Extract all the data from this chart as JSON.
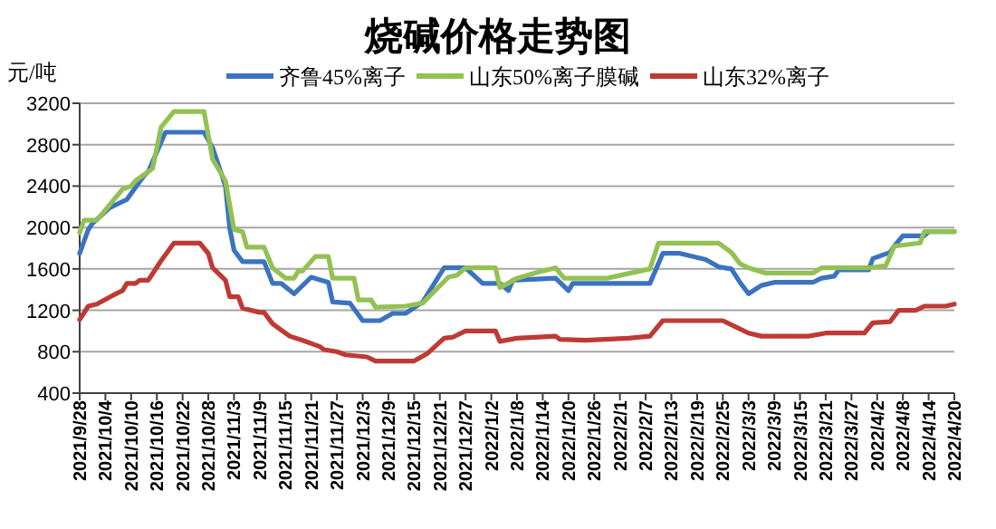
{
  "chart_data": {
    "type": "line",
    "title": "烧碱价格走势图",
    "ylabel": "元/吨",
    "xlim": [
      "2021-09-28",
      "2022-04-20"
    ],
    "ylim": [
      400,
      3200
    ],
    "yticks": [
      400,
      800,
      1200,
      1600,
      2000,
      2400,
      2800,
      3200
    ],
    "xticks": [
      {
        "value": "2021-09-28",
        "label": "2021/9/28"
      },
      {
        "value": "2021-10-04",
        "label": "2021/10/4"
      },
      {
        "value": "2021-10-10",
        "label": "2021/10/10"
      },
      {
        "value": "2021-10-16",
        "label": "2021/10/16"
      },
      {
        "value": "2021-10-22",
        "label": "2021/10/22"
      },
      {
        "value": "2021-10-28",
        "label": "2021/10/28"
      },
      {
        "value": "2021-11-03",
        "label": "2021/11/3"
      },
      {
        "value": "2021-11-09",
        "label": "2021/11/9"
      },
      {
        "value": "2021-11-15",
        "label": "2021/11/15"
      },
      {
        "value": "2021-11-21",
        "label": "2021/11/21"
      },
      {
        "value": "2021-11-27",
        "label": "2021/11/27"
      },
      {
        "value": "2021-12-03",
        "label": "2021/12/3"
      },
      {
        "value": "2021-12-09",
        "label": "2021/12/9"
      },
      {
        "value": "2021-12-15",
        "label": "2021/12/15"
      },
      {
        "value": "2021-12-21",
        "label": "2021/12/21"
      },
      {
        "value": "2021-12-27",
        "label": "2021/12/27"
      },
      {
        "value": "2022-01-02",
        "label": "2022/1/2"
      },
      {
        "value": "2022-01-08",
        "label": "2022/1/8"
      },
      {
        "value": "2022-01-14",
        "label": "2022/1/14"
      },
      {
        "value": "2022-01-20",
        "label": "2022/1/20"
      },
      {
        "value": "2022-01-26",
        "label": "2022/1/26"
      },
      {
        "value": "2022-02-01",
        "label": "2022/2/1"
      },
      {
        "value": "2022-02-07",
        "label": "2022/2/7"
      },
      {
        "value": "2022-02-13",
        "label": "2022/2/13"
      },
      {
        "value": "2022-02-19",
        "label": "2022/2/19"
      },
      {
        "value": "2022-02-25",
        "label": "2022/2/25"
      },
      {
        "value": "2022-03-03",
        "label": "2022/3/3"
      },
      {
        "value": "2022-03-09",
        "label": "2022/3/9"
      },
      {
        "value": "2022-03-15",
        "label": "2022/3/15"
      },
      {
        "value": "2022-03-21",
        "label": "2022/3/21"
      },
      {
        "value": "2022-03-27",
        "label": "2022/3/27"
      },
      {
        "value": "2022-04-02",
        "label": "2022/4/2"
      },
      {
        "value": "2022-04-08",
        "label": "2022/4/8"
      },
      {
        "value": "2022-04-14",
        "label": "2022/4/14"
      },
      {
        "value": "2022-04-20",
        "label": "2022/4/20"
      }
    ],
    "grid": "y",
    "legend": "top",
    "marker": "none",
    "line_style": "solid",
    "series": [
      {
        "name": "齐鲁45%离子",
        "color": "#3b73c1",
        "x": [
          "2021-09-28",
          "2021-09-30",
          "2021-10-01",
          "2021-10-05",
          "2021-10-09",
          "2021-10-13",
          "2021-10-14",
          "2021-10-18",
          "2021-10-27",
          "2021-10-29",
          "2021-11-01",
          "2021-11-02",
          "2021-11-03",
          "2021-11-05",
          "2021-11-10",
          "2021-11-12",
          "2021-11-14",
          "2021-11-17",
          "2021-11-21",
          "2021-11-25",
          "2021-11-26",
          "2021-11-30",
          "2021-12-03",
          "2021-12-07",
          "2021-12-10",
          "2021-12-13",
          "2021-12-17",
          "2021-12-22",
          "2021-12-27",
          "2021-12-31",
          "2022-01-04",
          "2022-01-06",
          "2022-01-07",
          "2022-01-17",
          "2022-01-20",
          "2022-01-21",
          "2022-02-08",
          "2022-02-11",
          "2022-02-15",
          "2022-02-21",
          "2022-02-24",
          "2022-02-27",
          "2022-03-01",
          "2022-03-03",
          "2022-03-06",
          "2022-03-09",
          "2022-03-18",
          "2022-03-20",
          "2022-03-23",
          "2022-03-24",
          "2022-03-31",
          "2022-04-01",
          "2022-04-05",
          "2022-04-06",
          "2022-04-08",
          "2022-04-13",
          "2022-04-14",
          "2022-04-20"
        ],
        "values": [
          1750,
          1980,
          2040,
          2190,
          2270,
          2500,
          2540,
          2920,
          2920,
          2770,
          2400,
          1990,
          1780,
          1670,
          1670,
          1460,
          1460,
          1360,
          1520,
          1470,
          1280,
          1270,
          1100,
          1100,
          1170,
          1170,
          1280,
          1610,
          1610,
          1460,
          1460,
          1390,
          1490,
          1510,
          1390,
          1460,
          1460,
          1750,
          1750,
          1690,
          1620,
          1600,
          1470,
          1360,
          1440,
          1470,
          1470,
          1510,
          1530,
          1590,
          1590,
          1700,
          1760,
          1820,
          1920,
          1920,
          1960,
          1960
        ]
      },
      {
        "name": "山东50%离子膜碱",
        "color": "#93c152",
        "x": [
          "2021-09-28",
          "2021-09-29",
          "2021-10-02",
          "2021-10-08",
          "2021-10-10",
          "2021-10-11",
          "2021-10-13",
          "2021-10-15",
          "2021-10-17",
          "2021-10-20",
          "2021-10-27",
          "2021-10-29",
          "2021-11-01",
          "2021-11-03",
          "2021-11-05",
          "2021-11-06",
          "2021-11-10",
          "2021-11-12",
          "2021-11-15",
          "2021-11-17",
          "2021-11-18",
          "2021-11-19",
          "2021-11-22",
          "2021-11-25",
          "2021-11-26",
          "2021-12-01",
          "2021-12-02",
          "2021-12-05",
          "2021-12-06",
          "2021-12-13",
          "2021-12-17",
          "2021-12-23",
          "2021-12-25",
          "2021-12-27",
          "2022-01-03",
          "2022-01-04",
          "2022-01-05",
          "2022-01-08",
          "2022-01-13",
          "2022-01-17",
          "2022-01-19",
          "2022-01-29",
          "2022-02-08",
          "2022-02-10",
          "2022-02-24",
          "2022-02-27",
          "2022-03-01",
          "2022-03-03",
          "2022-03-07",
          "2022-03-18",
          "2022-03-20",
          "2022-03-31",
          "2022-04-04",
          "2022-04-06",
          "2022-04-12",
          "2022-04-13",
          "2022-04-20"
        ],
        "values": [
          1950,
          2070,
          2070,
          2370,
          2400,
          2450,
          2510,
          2570,
          2970,
          3120,
          3120,
          2660,
          2450,
          1980,
          1960,
          1810,
          1810,
          1610,
          1510,
          1510,
          1580,
          1580,
          1720,
          1720,
          1510,
          1510,
          1300,
          1300,
          1230,
          1240,
          1270,
          1520,
          1540,
          1610,
          1610,
          1420,
          1440,
          1510,
          1570,
          1610,
          1510,
          1510,
          1600,
          1850,
          1850,
          1760,
          1650,
          1610,
          1560,
          1560,
          1610,
          1610,
          1630,
          1820,
          1850,
          1960,
          1960
        ]
      },
      {
        "name": "山东32%离子",
        "color": "#bf3a35",
        "x": [
          "2021-09-28",
          "2021-09-30",
          "2021-10-02",
          "2021-10-06",
          "2021-10-08",
          "2021-10-09",
          "2021-10-11",
          "2021-10-12",
          "2021-10-14",
          "2021-10-17",
          "2021-10-20",
          "2021-10-26",
          "2021-10-28",
          "2021-10-29",
          "2021-11-01",
          "2021-11-02",
          "2021-11-04",
          "2021-11-05",
          "2021-11-09",
          "2021-11-10",
          "2021-11-12",
          "2021-11-14",
          "2021-11-16",
          "2021-11-19",
          "2021-11-23",
          "2021-11-24",
          "2021-11-27",
          "2021-11-29",
          "2021-12-04",
          "2021-12-06",
          "2021-12-15",
          "2021-12-18",
          "2021-12-22",
          "2021-12-24",
          "2021-12-27",
          "2022-01-03",
          "2022-01-04",
          "2022-01-08",
          "2022-01-17",
          "2022-01-18",
          "2022-01-24",
          "2022-02-03",
          "2022-02-08",
          "2022-02-11",
          "2022-02-25",
          "2022-02-28",
          "2022-03-03",
          "2022-03-06",
          "2022-03-17",
          "2022-03-21",
          "2022-03-30",
          "2022-04-01",
          "2022-04-05",
          "2022-04-07",
          "2022-04-11",
          "2022-04-13",
          "2022-04-18",
          "2022-04-20"
        ],
        "values": [
          1110,
          1240,
          1260,
          1350,
          1390,
          1460,
          1460,
          1490,
          1490,
          1680,
          1850,
          1850,
          1750,
          1610,
          1490,
          1330,
          1330,
          1220,
          1180,
          1180,
          1070,
          1010,
          950,
          910,
          850,
          820,
          800,
          770,
          750,
          710,
          710,
          780,
          930,
          940,
          1000,
          1000,
          900,
          930,
          950,
          920,
          910,
          930,
          950,
          1100,
          1100,
          1040,
          980,
          950,
          950,
          980,
          980,
          1080,
          1090,
          1200,
          1200,
          1240,
          1240,
          1260
        ]
      }
    ]
  }
}
